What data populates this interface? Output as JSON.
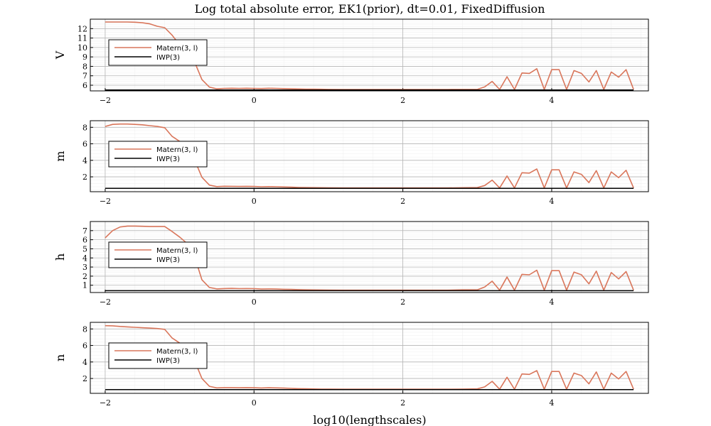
{
  "title": "Log total absolute error, EK1(prior), dt=0.01, FixedDiffusion",
  "xlabel": "log10(lengthscales)",
  "colors": {
    "matern": "#d9765b",
    "iwp": "#000000",
    "grid": "#d4d4d4",
    "minor_grid": "#efefef"
  },
  "chart_data": [
    {
      "type": "line",
      "ylabel": "V",
      "xlim": [
        -2.2,
        5.3
      ],
      "ylim": [
        5.4,
        13.0
      ],
      "xticks": [
        -2,
        0,
        2,
        4
      ],
      "xtick_labels": [
        "−2",
        "0",
        "2",
        "4"
      ],
      "yticks": [
        6,
        7,
        8,
        9,
        10,
        11,
        12
      ],
      "ytick_labels": [
        "6",
        "7",
        "8",
        "9",
        "10",
        "11",
        "12"
      ],
      "grid": true,
      "legend_position": "left",
      "series": [
        {
          "name": "Matern(3, l)",
          "x": [
            -2.0,
            -1.9,
            -1.8,
            -1.7,
            -1.6,
            -1.5,
            -1.4,
            -1.3,
            -1.2,
            -1.1,
            -1.0,
            -0.9,
            -0.8,
            -0.7,
            -0.6,
            -0.5,
            -0.4,
            -0.3,
            -0.2,
            -0.1,
            0.0,
            0.1,
            0.2,
            0.3,
            0.4,
            0.5,
            0.6,
            0.7,
            0.8,
            0.9,
            1.0,
            1.2,
            1.4,
            1.6,
            1.8,
            2.0,
            2.2,
            2.4,
            2.6,
            2.8,
            3.0,
            3.1,
            3.2,
            3.3,
            3.4,
            3.5,
            3.6,
            3.7,
            3.8,
            3.9,
            4.0,
            4.1,
            4.2,
            4.3,
            4.4,
            4.5,
            4.6,
            4.7,
            4.8,
            4.9,
            5.0,
            5.1
          ],
          "values": [
            12.7,
            12.7,
            12.7,
            12.7,
            12.68,
            12.62,
            12.5,
            12.25,
            12.1,
            11.3,
            10.3,
            9.4,
            8.5,
            6.6,
            5.8,
            5.62,
            5.66,
            5.68,
            5.66,
            5.68,
            5.66,
            5.65,
            5.68,
            5.66,
            5.64,
            5.62,
            5.6,
            5.59,
            5.58,
            5.57,
            5.56,
            5.55,
            5.55,
            5.55,
            5.55,
            5.55,
            5.55,
            5.55,
            5.55,
            5.56,
            5.56,
            5.82,
            6.4,
            5.55,
            6.9,
            5.55,
            7.3,
            7.25,
            7.75,
            5.55,
            7.65,
            7.65,
            5.55,
            7.55,
            7.25,
            6.35,
            7.55,
            5.55,
            7.4,
            6.85,
            7.65,
            5.55
          ]
        },
        {
          "name": "IWP(3)",
          "x": [
            -2.0,
            5.1
          ],
          "values": [
            5.5,
            5.5
          ]
        }
      ]
    },
    {
      "type": "line",
      "ylabel": "m",
      "xlim": [
        -2.2,
        5.3
      ],
      "ylim": [
        0.2,
        8.8
      ],
      "xticks": [
        -2,
        0,
        2,
        4
      ],
      "xtick_labels": [
        "−2",
        "0",
        "2",
        "4"
      ],
      "yticks": [
        2,
        4,
        6,
        8
      ],
      "ytick_labels": [
        "2",
        "4",
        "6",
        "8"
      ],
      "grid": true,
      "legend_position": "left",
      "series": [
        {
          "name": "Matern(3, l)",
          "x": [
            -2.0,
            -1.9,
            -1.8,
            -1.7,
            -1.6,
            -1.5,
            -1.4,
            -1.3,
            -1.2,
            -1.1,
            -1.0,
            -0.9,
            -0.8,
            -0.7,
            -0.6,
            -0.5,
            -0.4,
            -0.3,
            -0.2,
            -0.1,
            0.0,
            0.1,
            0.2,
            0.3,
            0.4,
            0.5,
            0.6,
            0.7,
            0.8,
            0.9,
            1.0,
            1.2,
            1.4,
            1.6,
            1.8,
            2.0,
            2.2,
            2.4,
            2.6,
            2.8,
            3.0,
            3.1,
            3.2,
            3.3,
            3.4,
            3.5,
            3.6,
            3.7,
            3.8,
            3.9,
            4.0,
            4.1,
            4.2,
            4.3,
            4.4,
            4.5,
            4.6,
            4.7,
            4.8,
            4.9,
            5.0,
            5.1
          ],
          "values": [
            8.1,
            8.35,
            8.4,
            8.4,
            8.35,
            8.3,
            8.2,
            8.1,
            7.95,
            6.9,
            6.3,
            5.4,
            4.1,
            1.95,
            1.0,
            0.82,
            0.86,
            0.85,
            0.84,
            0.85,
            0.84,
            0.8,
            0.82,
            0.8,
            0.78,
            0.75,
            0.72,
            0.7,
            0.69,
            0.68,
            0.67,
            0.66,
            0.66,
            0.66,
            0.66,
            0.66,
            0.66,
            0.66,
            0.66,
            0.68,
            0.7,
            0.95,
            1.6,
            0.66,
            2.1,
            0.66,
            2.5,
            2.45,
            2.95,
            0.66,
            2.85,
            2.85,
            0.66,
            2.6,
            2.3,
            1.3,
            2.75,
            0.66,
            2.6,
            1.9,
            2.8,
            0.66
          ]
        },
        {
          "name": "IWP(3)",
          "x": [
            -2.0,
            5.1
          ],
          "values": [
            0.6,
            0.6
          ]
        }
      ]
    },
    {
      "type": "line",
      "ylabel": "h",
      "xlim": [
        -2.2,
        5.3
      ],
      "ylim": [
        0.2,
        8.0
      ],
      "xticks": [
        -2,
        0,
        2,
        4
      ],
      "xtick_labels": [
        "−2",
        "0",
        "2",
        "4"
      ],
      "yticks": [
        1,
        2,
        3,
        4,
        5,
        6,
        7
      ],
      "ytick_labels": [
        "1",
        "2",
        "3",
        "4",
        "5",
        "6",
        "7"
      ],
      "grid": true,
      "legend_position": "left",
      "series": [
        {
          "name": "Matern(3, l)",
          "x": [
            -2.0,
            -1.9,
            -1.8,
            -1.7,
            -1.6,
            -1.5,
            -1.4,
            -1.3,
            -1.2,
            -1.1,
            -1.0,
            -0.9,
            -0.8,
            -0.7,
            -0.6,
            -0.5,
            -0.4,
            -0.3,
            -0.2,
            -0.1,
            0.0,
            0.1,
            0.2,
            0.3,
            0.4,
            0.5,
            0.6,
            0.7,
            0.8,
            0.9,
            1.0,
            1.2,
            1.4,
            1.6,
            1.8,
            2.0,
            2.2,
            2.4,
            2.6,
            2.8,
            3.0,
            3.1,
            3.2,
            3.3,
            3.4,
            3.5,
            3.6,
            3.7,
            3.8,
            3.9,
            4.0,
            4.1,
            4.2,
            4.3,
            4.4,
            4.5,
            4.6,
            4.7,
            4.8,
            4.9,
            5.0,
            5.1
          ],
          "values": [
            6.2,
            7.0,
            7.4,
            7.5,
            7.5,
            7.48,
            7.45,
            7.45,
            7.45,
            6.9,
            6.3,
            5.6,
            4.2,
            1.6,
            0.75,
            0.6,
            0.64,
            0.65,
            0.63,
            0.64,
            0.63,
            0.58,
            0.6,
            0.58,
            0.56,
            0.54,
            0.52,
            0.5,
            0.49,
            0.48,
            0.47,
            0.46,
            0.46,
            0.46,
            0.46,
            0.46,
            0.46,
            0.46,
            0.46,
            0.5,
            0.5,
            0.8,
            1.45,
            0.46,
            1.9,
            0.46,
            2.2,
            2.15,
            2.65,
            0.46,
            2.6,
            2.6,
            0.46,
            2.45,
            2.15,
            1.15,
            2.55,
            0.46,
            2.4,
            1.7,
            2.5,
            0.46
          ]
        },
        {
          "name": "IWP(3)",
          "x": [
            -2.0,
            5.1
          ],
          "values": [
            0.4,
            0.4
          ]
        }
      ]
    },
    {
      "type": "line",
      "ylabel": "n",
      "xlim": [
        -2.2,
        5.3
      ],
      "ylim": [
        0.2,
        8.8
      ],
      "xticks": [
        -2,
        0,
        2,
        4
      ],
      "xtick_labels": [
        "−2",
        "0",
        "2",
        "4"
      ],
      "yticks": [
        2,
        4,
        6,
        8
      ],
      "ytick_labels": [
        "2",
        "4",
        "6",
        "8"
      ],
      "grid": true,
      "legend_position": "left",
      "series": [
        {
          "name": "Matern(3, l)",
          "x": [
            -2.0,
            -1.9,
            -1.8,
            -1.7,
            -1.6,
            -1.5,
            -1.4,
            -1.3,
            -1.2,
            -1.1,
            -1.0,
            -0.9,
            -0.8,
            -0.7,
            -0.6,
            -0.5,
            -0.4,
            -0.3,
            -0.2,
            -0.1,
            0.0,
            0.1,
            0.2,
            0.3,
            0.4,
            0.5,
            0.6,
            0.7,
            0.8,
            0.9,
            1.0,
            1.2,
            1.4,
            1.6,
            1.8,
            2.0,
            2.2,
            2.4,
            2.6,
            2.8,
            3.0,
            3.1,
            3.2,
            3.3,
            3.4,
            3.5,
            3.6,
            3.7,
            3.8,
            3.9,
            4.0,
            4.1,
            4.2,
            4.3,
            4.4,
            4.5,
            4.6,
            4.7,
            4.8,
            4.9,
            5.0,
            5.1
          ],
          "values": [
            8.4,
            8.38,
            8.3,
            8.25,
            8.2,
            8.15,
            8.1,
            8.05,
            7.95,
            6.9,
            6.3,
            5.5,
            4.2,
            2.0,
            1.05,
            0.86,
            0.9,
            0.9,
            0.88,
            0.9,
            0.88,
            0.85,
            0.88,
            0.86,
            0.84,
            0.8,
            0.77,
            0.75,
            0.73,
            0.72,
            0.71,
            0.7,
            0.7,
            0.7,
            0.7,
            0.7,
            0.7,
            0.7,
            0.7,
            0.72,
            0.74,
            0.98,
            1.65,
            0.7,
            2.15,
            0.7,
            2.55,
            2.5,
            2.95,
            0.7,
            2.85,
            2.85,
            0.7,
            2.65,
            2.35,
            1.35,
            2.8,
            0.7,
            2.65,
            1.95,
            2.85,
            0.7
          ]
        },
        {
          "name": "IWP(3)",
          "x": [
            -2.0,
            5.1
          ],
          "values": [
            0.65,
            0.65
          ]
        }
      ]
    }
  ]
}
